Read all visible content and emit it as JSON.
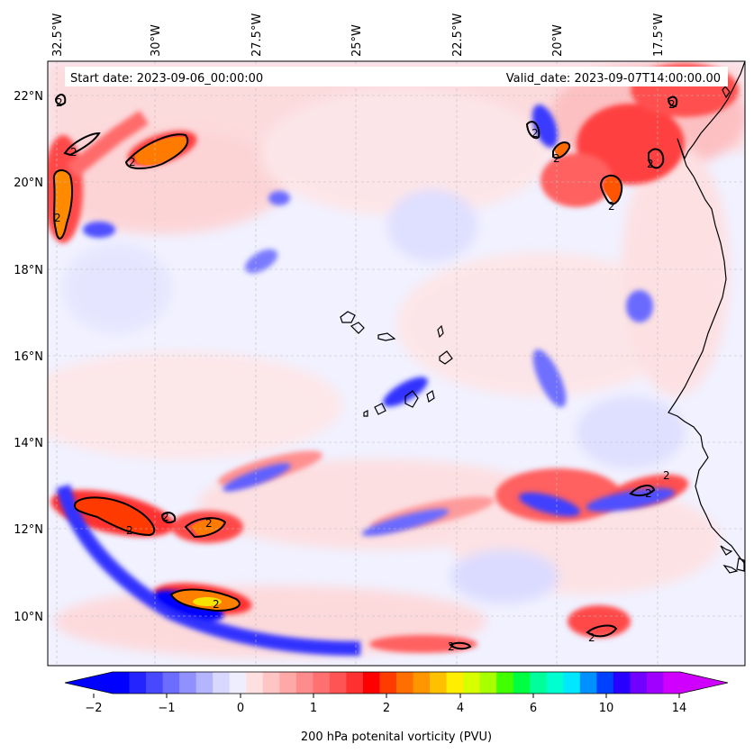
{
  "header": {
    "start_date": "Start date: 2023-09-06_00:00:00",
    "valid_date": "Valid_date: 2023-09-07T14:00:00.00"
  },
  "axes": {
    "top_ticks": [
      "32.5°W",
      "30°W",
      "27.5°W",
      "25°W",
      "22.5°W",
      "20°W",
      "17.5°W"
    ],
    "left_ticks": [
      "22°N",
      "20°N",
      "18°N",
      "16°N",
      "14°N",
      "12°N",
      "10°N"
    ]
  },
  "colorbar": {
    "label": "200 hPa potenital vorticity (PVU)",
    "tick_labels": [
      "−2",
      "−1",
      "0",
      "1",
      "2",
      "4",
      "6",
      "10",
      "14"
    ],
    "colors": [
      "#0000ff",
      "#2424ff",
      "#4848ff",
      "#6c6cff",
      "#9090ff",
      "#b4b4ff",
      "#d8d8ff",
      "#eeeeff",
      "#ffe0e0",
      "#ffc4c4",
      "#ffa8a8",
      "#ff8c8c",
      "#ff7070",
      "#ff5454",
      "#ff3030",
      "#ff0000",
      "#ff3c00",
      "#ff6e00",
      "#ff9600",
      "#ffc000",
      "#ffee00",
      "#d8ff00",
      "#a8ff00",
      "#40ff00",
      "#00ff40",
      "#00ff9a",
      "#00ffd0",
      "#00e8ff",
      "#0090ff",
      "#0040ff",
      "#2800ff",
      "#7000ff",
      "#a000ff",
      "#d000ff"
    ],
    "over_color": "#d000ff",
    "under_color": "#0000ff"
  },
  "map": {
    "contour_label": "2"
  }
}
